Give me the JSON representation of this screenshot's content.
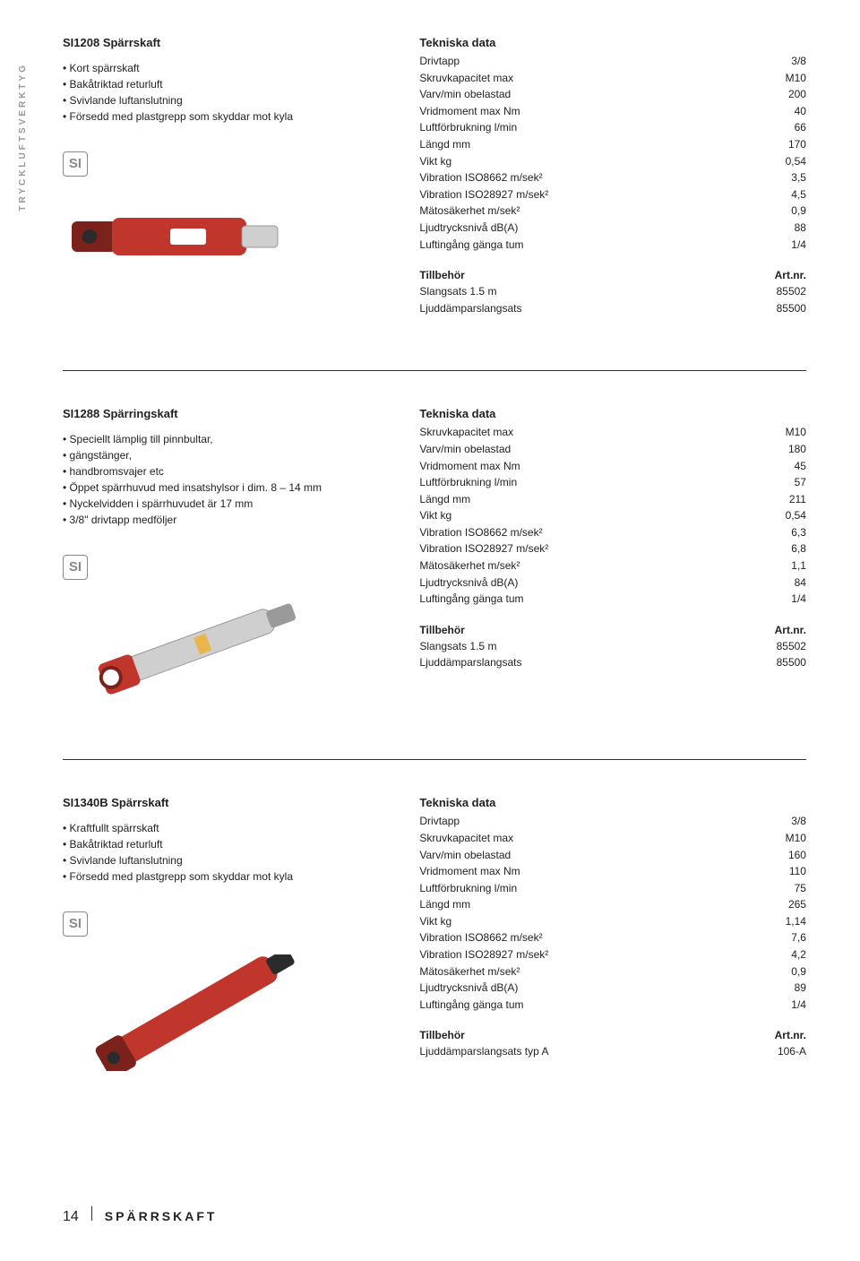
{
  "sidebarLabel": "TRYCKLUFTSVERKTYG",
  "footer": {
    "pageNum": "14",
    "title": "SPÄRRSKAFT"
  },
  "tekniskaLabel": "Tekniska data",
  "tillbehorLabel": "Tillbehör",
  "artnrLabel": "Art.nr.",
  "products": [
    {
      "title": "SI1208 Spärrskaft",
      "bullets": [
        "Kort spärrskaft",
        "Bakåtriktad returluft",
        "Svivlande luftanslutning",
        "Försedd med plastgrepp som skyddar mot kyla"
      ],
      "specs": [
        {
          "label": "Drivtapp",
          "val": "3/8"
        },
        {
          "label": "Skruvkapacitet max",
          "val": "M10"
        },
        {
          "label": "Varv/min obelastad",
          "val": "200"
        },
        {
          "label": "Vridmoment max Nm",
          "val": "40"
        },
        {
          "label": "Luftförbrukning l/min",
          "val": "66"
        },
        {
          "label": "Längd mm",
          "val": "170"
        },
        {
          "label": "Vikt kg",
          "val": "0,54"
        },
        {
          "label": "Vibration ISO8662 m/sek²",
          "val": "3,5"
        },
        {
          "label": "Vibration ISO28927 m/sek²",
          "val": "4,5"
        },
        {
          "label": "Mätosäkerhet m/sek²",
          "val": "0,9"
        },
        {
          "label": "Ljudtrycksnivå dB(A)",
          "val": "88"
        },
        {
          "label": "Luftingång gänga tum",
          "val": "1/4"
        }
      ],
      "tillbehor": [
        {
          "label": "Slangsats 1.5 m",
          "val": "85502"
        },
        {
          "label": "Ljuddämparslangsats",
          "val": "85500"
        }
      ]
    },
    {
      "title": "SI1288 Spärringskaft",
      "bullets": [
        "Speciellt lämplig till pinnbultar,",
        "gängstänger,",
        "handbromsvajer etc",
        "Öppet spärrhuvud med insatshylsor i dim. 8 – 14 mm",
        "Nyckelvidden i spärrhuvudet är 17 mm",
        "3/8\" drivtapp medföljer"
      ],
      "specs": [
        {
          "label": "Skruvkapacitet max",
          "val": "M10"
        },
        {
          "label": "Varv/min obelastad",
          "val": "180"
        },
        {
          "label": "Vridmoment max Nm",
          "val": "45"
        },
        {
          "label": "Luftförbrukning l/min",
          "val": "57"
        },
        {
          "label": "Längd mm",
          "val": "211"
        },
        {
          "label": "Vikt kg",
          "val": "0,54"
        },
        {
          "label": "Vibration ISO8662 m/sek²",
          "val": "6,3"
        },
        {
          "label": "Vibration ISO28927 m/sek²",
          "val": "6,8"
        },
        {
          "label": "Mätosäkerhet m/sek²",
          "val": "1,1"
        },
        {
          "label": "Ljudtrycksnivå dB(A)",
          "val": "84"
        },
        {
          "label": "Luftingång gänga tum",
          "val": "1/4"
        }
      ],
      "tillbehor": [
        {
          "label": "Slangsats 1.5 m",
          "val": "85502"
        },
        {
          "label": "Ljuddämparslangsats",
          "val": "85500"
        }
      ]
    },
    {
      "title": "SI1340B Spärrskaft",
      "bullets": [
        "Kraftfullt spärrskaft",
        "Bakåtriktad returluft",
        "Svivlande luftanslutning",
        "Försedd med plastgrepp som skyddar mot kyla"
      ],
      "specs": [
        {
          "label": "Drivtapp",
          "val": "3/8"
        },
        {
          "label": "Skruvkapacitet max",
          "val": "M10"
        },
        {
          "label": "Varv/min obelastad",
          "val": "160"
        },
        {
          "label": "Vridmoment max Nm",
          "val": "110"
        },
        {
          "label": "Luftförbrukning l/min",
          "val": "75"
        },
        {
          "label": "Längd mm",
          "val": "265"
        },
        {
          "label": "Vikt kg",
          "val": "1,14"
        },
        {
          "label": "Vibration ISO8662 m/sek²",
          "val": "7,6"
        },
        {
          "label": "Vibration ISO28927 m/sek²",
          "val": "4,2"
        },
        {
          "label": "Mätosäkerhet m/sek²",
          "val": "0,9"
        },
        {
          "label": "Ljudtrycksnivå dB(A)",
          "val": "89"
        },
        {
          "label": "Luftingång gänga tum",
          "val": "1/4"
        }
      ],
      "tillbehor": [
        {
          "label": "Ljuddämparslangsats typ A",
          "val": "106-A"
        }
      ]
    }
  ],
  "toolColors": {
    "red": "#c0362c",
    "darkRed": "#7a221b",
    "silver": "#cfcfcf",
    "silverDark": "#9a9a9a",
    "black": "#2b2b2b"
  }
}
